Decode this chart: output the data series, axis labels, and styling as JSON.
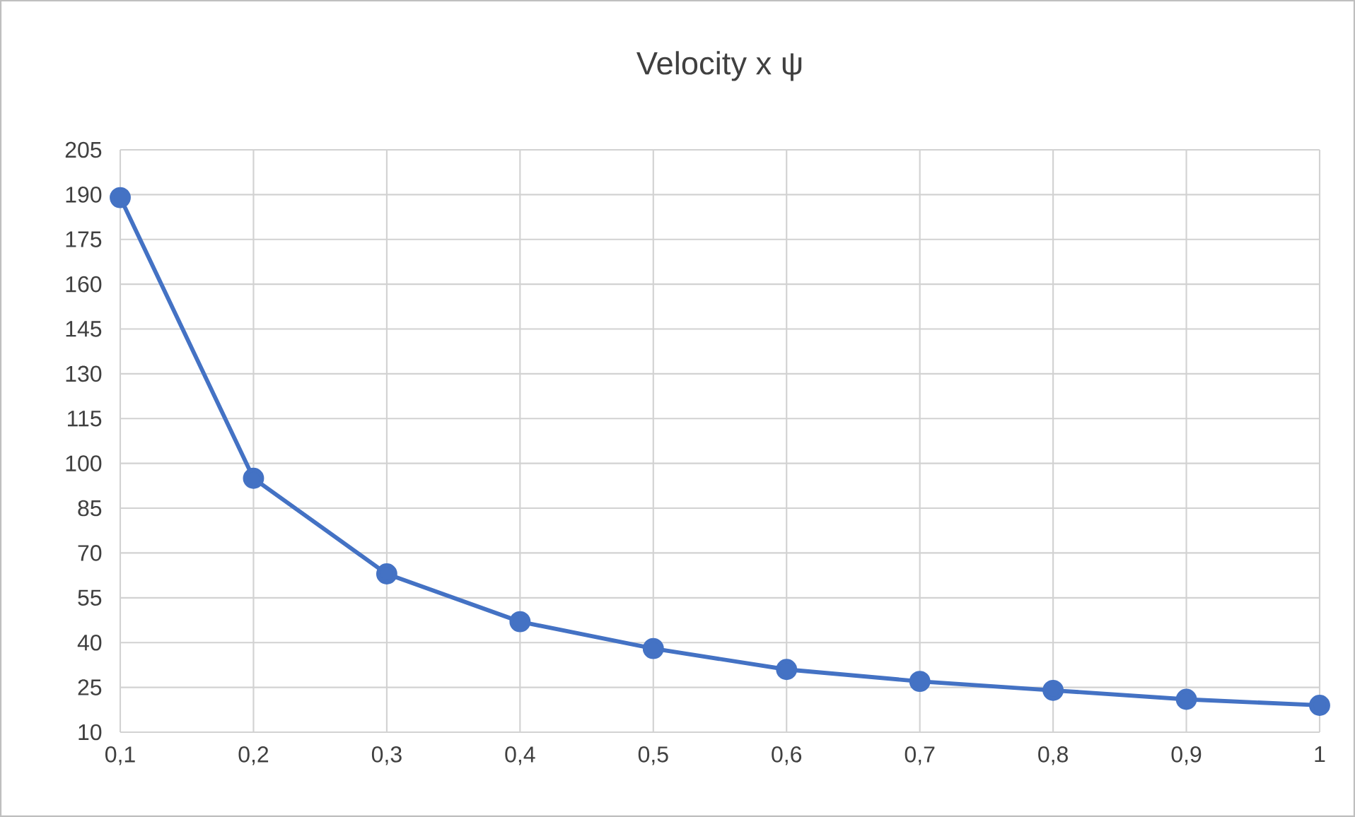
{
  "chart_data": {
    "type": "line",
    "title": "Velocity x ψ",
    "x": [
      0.1,
      0.2,
      0.3,
      0.4,
      0.5,
      0.6,
      0.7,
      0.8,
      0.9,
      1
    ],
    "series": [
      {
        "color": "#4472c4",
        "values": [
          189,
          95,
          63,
          47,
          38,
          31,
          27,
          24,
          21,
          19
        ]
      }
    ],
    "xlim": [
      0.1,
      1
    ],
    "xticks": [
      {
        "value": 0.1,
        "label": "0,1"
      },
      {
        "value": 0.2,
        "label": "0,2"
      },
      {
        "value": 0.3,
        "label": "0,3"
      },
      {
        "value": 0.4,
        "label": "0,4"
      },
      {
        "value": 0.5,
        "label": "0,5"
      },
      {
        "value": 0.6,
        "label": "0,6"
      },
      {
        "value": 0.7,
        "label": "0,7"
      },
      {
        "value": 0.8,
        "label": "0,8"
      },
      {
        "value": 0.9,
        "label": "0,9"
      },
      1
    ],
    "ylim": [
      10,
      205
    ],
    "yticks": [
      10,
      25,
      40,
      55,
      70,
      85,
      100,
      115,
      130,
      145,
      160,
      175,
      190,
      205
    ],
    "grid": true,
    "marker": "circle",
    "line_style": "solid"
  }
}
